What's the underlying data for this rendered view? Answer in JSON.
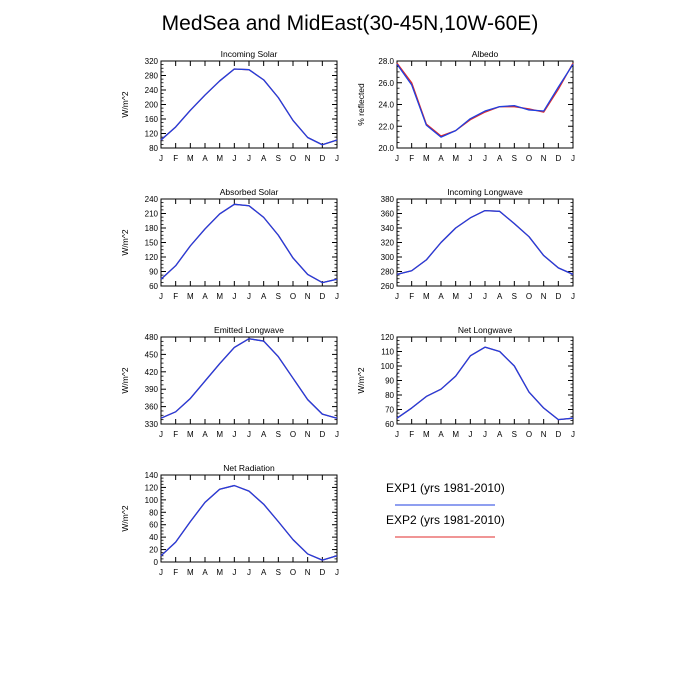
{
  "figure": {
    "title": "MedSea and MidEast(30-45N,10W-60E)"
  },
  "months": [
    "J",
    "F",
    "M",
    "A",
    "M",
    "J",
    "J",
    "A",
    "S",
    "O",
    "N",
    "D",
    "J"
  ],
  "legend": {
    "items": [
      {
        "label": "EXP1 (yrs 1981-2010)",
        "color": "#1f3fe0"
      },
      {
        "label": "EXP2 (yrs 1981-2010)",
        "color": "#e02b2b"
      }
    ]
  },
  "chart_data": [
    {
      "type": "line",
      "title": "Incoming Solar",
      "ylabel": "W/m^2",
      "ylim": [
        80,
        320
      ],
      "yticks": [
        80,
        120,
        160,
        200,
        240,
        280,
        320
      ],
      "ytick_labels": [
        "80",
        "120",
        "160",
        "200",
        "240",
        "280",
        "320"
      ],
      "series": [
        {
          "name": "EXP1 (yrs 1981-2010)",
          "color": "#1f3fe0",
          "values": [
            102,
            138,
            184,
            226,
            265,
            298,
            296,
            268,
            219,
            156,
            109,
            89,
            102
          ]
        },
        {
          "name": "EXP2 (yrs 1981-2010)",
          "color": "#e02b2b",
          "values": [
            102,
            138,
            184,
            226,
            265,
            298,
            296,
            268,
            219,
            156,
            109,
            89,
            102
          ]
        }
      ]
    },
    {
      "type": "line",
      "title": "Albedo",
      "ylabel": "% reflected",
      "ylim": [
        20,
        28
      ],
      "yticks": [
        20,
        22,
        24,
        26,
        28
      ],
      "ytick_labels": [
        "20.0",
        "22.0",
        "24.0",
        "26.0",
        "28.0"
      ],
      "series": [
        {
          "name": "EXP1 (yrs 1981-2010)",
          "color": "#1f3fe0",
          "values": [
            27.7,
            25.8,
            22.1,
            21.0,
            21.6,
            22.7,
            23.4,
            23.8,
            23.9,
            23.5,
            23.4,
            25.6,
            27.7
          ]
        },
        {
          "name": "EXP2 (yrs 1981-2010)",
          "color": "#e02b2b",
          "values": [
            27.8,
            26.0,
            22.2,
            21.1,
            21.6,
            22.6,
            23.3,
            23.8,
            23.8,
            23.6,
            23.3,
            25.4,
            27.8
          ]
        }
      ]
    },
    {
      "type": "line",
      "title": "Absorbed Solar",
      "ylabel": "W/m^2",
      "ylim": [
        60,
        240
      ],
      "yticks": [
        60,
        90,
        120,
        150,
        180,
        210,
        240
      ],
      "ytick_labels": [
        "60",
        "90",
        "120",
        "150",
        "180",
        "210",
        "240"
      ],
      "series": [
        {
          "name": "EXP1 (yrs 1981-2010)",
          "color": "#1f3fe0",
          "values": [
            74,
            102,
            143,
            178,
            209,
            229,
            226,
            202,
            165,
            118,
            84,
            67,
            74
          ]
        },
        {
          "name": "EXP2 (yrs 1981-2010)",
          "color": "#e02b2b",
          "values": [
            74,
            102,
            143,
            178,
            209,
            229,
            226,
            202,
            165,
            118,
            84,
            67,
            74
          ]
        }
      ]
    },
    {
      "type": "line",
      "title": "Incoming Longwave",
      "ylabel": "",
      "ylim": [
        260,
        380
      ],
      "yticks": [
        260,
        280,
        300,
        320,
        340,
        360,
        380
      ],
      "ytick_labels": [
        "260",
        "280",
        "300",
        "320",
        "340",
        "360",
        "380"
      ],
      "series": [
        {
          "name": "EXP1 (yrs 1981-2010)",
          "color": "#1f3fe0",
          "values": [
            276,
            281,
            296,
            320,
            340,
            354,
            364,
            363,
            346,
            328,
            302,
            285,
            276
          ]
        },
        {
          "name": "EXP2 (yrs 1981-2010)",
          "color": "#e02b2b",
          "values": [
            276,
            281,
            296,
            320,
            340,
            354,
            364,
            363,
            346,
            328,
            302,
            285,
            276
          ]
        }
      ]
    },
    {
      "type": "line",
      "title": "Emitted Longwave",
      "ylabel": "W/m^2",
      "ylim": [
        330,
        480
      ],
      "yticks": [
        330,
        360,
        390,
        420,
        450,
        480
      ],
      "ytick_labels": [
        "330",
        "360",
        "390",
        "420",
        "450",
        "480"
      ],
      "series": [
        {
          "name": "EXP1 (yrs 1981-2010)",
          "color": "#1f3fe0",
          "values": [
            340,
            351,
            374,
            404,
            434,
            462,
            477,
            473,
            446,
            409,
            372,
            347,
            340
          ]
        },
        {
          "name": "EXP2 (yrs 1981-2010)",
          "color": "#e02b2b",
          "values": [
            340,
            351,
            374,
            404,
            434,
            462,
            477,
            473,
            446,
            409,
            372,
            347,
            340
          ]
        }
      ]
    },
    {
      "type": "line",
      "title": "Net Longwave",
      "ylabel": "W/m^2",
      "ylim": [
        60,
        120
      ],
      "yticks": [
        60,
        70,
        80,
        90,
        100,
        110,
        120
      ],
      "ytick_labels": [
        "60",
        "70",
        "80",
        "90",
        "100",
        "110",
        "120"
      ],
      "series": [
        {
          "name": "EXP1 (yrs 1981-2010)",
          "color": "#1f3fe0",
          "values": [
            64,
            71,
            79,
            84,
            93,
            107,
            113,
            110,
            100,
            82,
            71,
            63,
            64
          ]
        },
        {
          "name": "EXP2 (yrs 1981-2010)",
          "color": "#e02b2b",
          "values": [
            64,
            71,
            79,
            84,
            93,
            107,
            113,
            110,
            100,
            82,
            71,
            63,
            64
          ]
        }
      ]
    },
    {
      "type": "line",
      "title": "Net Radiation",
      "ylabel": "W/m^2",
      "ylim": [
        0,
        140
      ],
      "yticks": [
        0,
        20,
        40,
        60,
        80,
        100,
        120,
        140
      ],
      "ytick_labels": [
        "0",
        "20",
        "40",
        "60",
        "80",
        "100",
        "120",
        "140"
      ],
      "series": [
        {
          "name": "EXP1 (yrs 1981-2010)",
          "color": "#1f3fe0",
          "values": [
            10,
            32,
            65,
            96,
            117,
            123,
            114,
            93,
            65,
            36,
            13,
            3,
            10
          ]
        },
        {
          "name": "EXP2 (yrs 1981-2010)",
          "color": "#e02b2b",
          "values": [
            10,
            32,
            65,
            96,
            117,
            123,
            114,
            93,
            65,
            36,
            13,
            3,
            10
          ]
        }
      ]
    }
  ]
}
